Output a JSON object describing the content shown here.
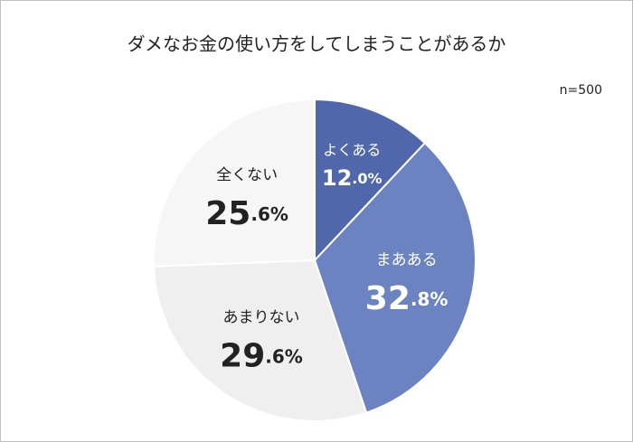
{
  "chart_data": {
    "type": "pie",
    "title": "ダメなお金の使い方をしてしまうことがあるか",
    "note": "n=500",
    "categories": [
      "よくある",
      "まあある",
      "あまりない",
      "全くない"
    ],
    "values": [
      12.0,
      32.8,
      29.6,
      25.6
    ],
    "value_labels": [
      "12.0%",
      "32.8%",
      "29.6%",
      "25.6%"
    ],
    "colors": [
      "#5068ab",
      "#6b83c0",
      "#efefef",
      "#f6f6f6"
    ]
  }
}
